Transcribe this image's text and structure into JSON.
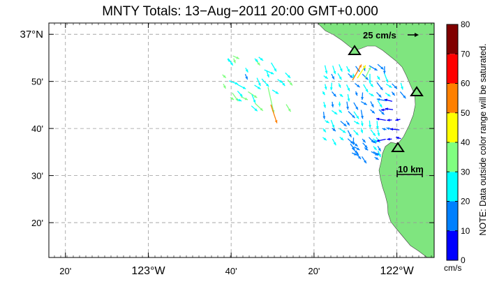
{
  "title": "MNTY Totals: 13−Aug−2011 20:00 GMT+0.000",
  "map": {
    "lon_range": [
      -123.4,
      -121.85
    ],
    "lat_range": [
      36.21,
      37.04
    ],
    "y_ticks": [
      {
        "lat": 37.0,
        "label": "37°N"
      },
      {
        "lat": 36.8333,
        "label": "50'"
      },
      {
        "lat": 36.6667,
        "label": "40'"
      },
      {
        "lat": 36.5,
        "label": "30'"
      },
      {
        "lat": 36.3333,
        "label": "20'"
      }
    ],
    "x_ticks": [
      {
        "lon": -123.3333,
        "label": "20'"
      },
      {
        "lon": -123.0,
        "label": "123°W"
      },
      {
        "lon": -122.6667,
        "label": "40'"
      },
      {
        "lon": -122.3333,
        "label": "20'"
      },
      {
        "lon": -122.0,
        "label": "122°W"
      }
    ],
    "reference_vector_label": "25 cm/s",
    "scale_bar_label": "10 km",
    "colors": {
      "land": "#7FE57F",
      "ocean": "#ffffff",
      "grid": "#999999",
      "site": "#000000"
    }
  },
  "colorbar": {
    "ticks": [
      "0",
      "10",
      "20",
      "30",
      "40",
      "50",
      "60",
      "70",
      "80"
    ],
    "colors": [
      "#0000ff",
      "#0080ff",
      "#00ffff",
      "#80ff80",
      "#ffff00",
      "#ff8000",
      "#ff0000",
      "#800000"
    ],
    "unit": "cm/s",
    "note": "NOTE: Data outside color range will be saturated."
  }
}
